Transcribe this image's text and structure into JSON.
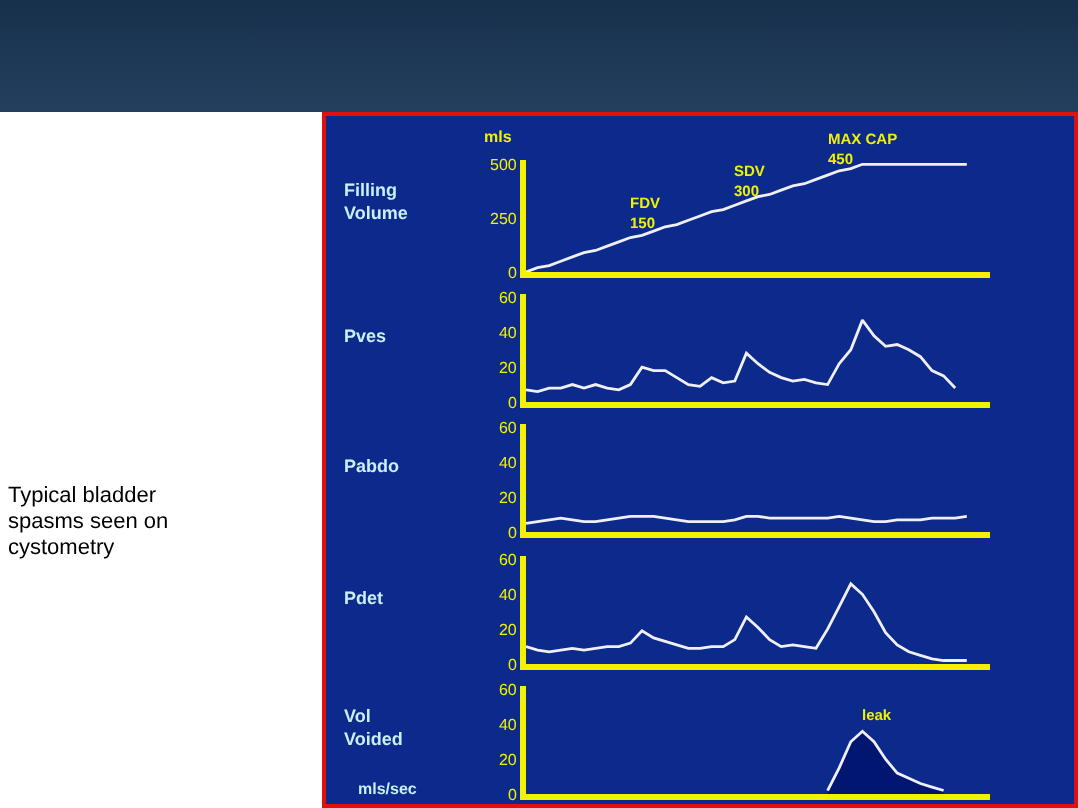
{
  "chart_data": [
    {
      "type": "other",
      "annotations": [
        "Typical bladder spasms seen on cystometry"
      ]
    },
    {
      "type": "line",
      "ylabel": "Filling Volume",
      "tick_labels": "y",
      "grid": false,
      "ylim": [
        0,
        520
      ],
      "yticks": [
        0,
        250,
        500
      ],
      "categories": [
        null,
        null,
        null,
        null,
        null,
        null,
        null,
        null,
        null,
        null,
        null,
        null,
        null,
        null,
        null,
        null,
        null,
        null,
        null,
        null,
        null,
        null,
        null,
        null,
        null,
        null,
        null,
        null,
        null,
        null,
        null,
        null,
        null,
        null,
        null,
        null,
        null,
        null,
        null,
        null,
        null
      ],
      "series": [
        {
          "color": "#f0f0f4",
          "values": [
            0,
            20,
            30,
            50,
            70,
            90,
            100,
            120,
            140,
            160,
            170,
            190,
            210,
            220,
            240,
            260,
            280,
            290,
            310,
            330,
            350,
            360,
            380,
            400,
            410,
            430,
            450,
            470,
            480,
            500,
            500,
            500,
            500,
            500,
            500,
            500,
            500,
            500,
            500,
            null,
            null
          ]
        }
      ],
      "annotations": [
        "mls",
        {
          "text": "FDV\n150",
          "y": 150
        },
        {
          "text": "SDV\n300",
          "y": 300
        },
        {
          "text": "MAX CAP\n450",
          "y": 450
        }
      ]
    },
    {
      "type": "line",
      "ylabel": "Pves",
      "tick_labels": "y",
      "grid": false,
      "ylim": [
        0,
        62
      ],
      "yticks": [
        0,
        20,
        40,
        60
      ],
      "categories": [
        null,
        null,
        null,
        null,
        null,
        null,
        null,
        null,
        null,
        null,
        null,
        null,
        null,
        null,
        null,
        null,
        null,
        null,
        null,
        null,
        null,
        null,
        null,
        null,
        null,
        null,
        null,
        null,
        null,
        null,
        null,
        null,
        null,
        null,
        null,
        null,
        null,
        null,
        null,
        null,
        null
      ],
      "series": [
        {
          "color": "#f0f0f4",
          "values": [
            7,
            6,
            8,
            8,
            10,
            8,
            10,
            8,
            7,
            10,
            20,
            18,
            18,
            14,
            10,
            9,
            14,
            11,
            12,
            28,
            22,
            17,
            14,
            12,
            13,
            11,
            10,
            22,
            30,
            47,
            38,
            32,
            33,
            30,
            26,
            18,
            15,
            8,
            null,
            null,
            null
          ]
        }
      ]
    },
    {
      "type": "line",
      "ylabel": "Pabdo",
      "tick_labels": "y",
      "grid": false,
      "ylim": [
        0,
        62
      ],
      "yticks": [
        0,
        20,
        40,
        60
      ],
      "categories": [
        null,
        null,
        null,
        null,
        null,
        null,
        null,
        null,
        null,
        null,
        null,
        null,
        null,
        null,
        null,
        null,
        null,
        null,
        null,
        null,
        null,
        null,
        null,
        null,
        null,
        null,
        null,
        null,
        null,
        null,
        null,
        null,
        null,
        null,
        null,
        null,
        null,
        null,
        null,
        null,
        null
      ],
      "series": [
        {
          "color": "#f0f0f4",
          "values": [
            5,
            6,
            7,
            8,
            7,
            6,
            6,
            7,
            8,
            9,
            9,
            9,
            8,
            7,
            6,
            6,
            6,
            6,
            7,
            9,
            9,
            8,
            8,
            8,
            8,
            8,
            8,
            9,
            8,
            7,
            6,
            6,
            7,
            7,
            7,
            8,
            8,
            8,
            9,
            null,
            null
          ]
        }
      ]
    },
    {
      "type": "line",
      "ylabel": "Pdet",
      "tick_labels": "y",
      "grid": false,
      "ylim": [
        0,
        62
      ],
      "yticks": [
        0,
        20,
        40,
        60
      ],
      "categories": [
        null,
        null,
        null,
        null,
        null,
        null,
        null,
        null,
        null,
        null,
        null,
        null,
        null,
        null,
        null,
        null,
        null,
        null,
        null,
        null,
        null,
        null,
        null,
        null,
        null,
        null,
        null,
        null,
        null,
        null,
        null,
        null,
        null,
        null,
        null,
        null,
        null,
        null,
        null,
        null,
        null
      ],
      "series": [
        {
          "color": "#f0f0f4",
          "values": [
            10,
            8,
            7,
            8,
            9,
            8,
            9,
            10,
            10,
            12,
            19,
            15,
            13,
            11,
            9,
            9,
            10,
            10,
            14,
            27,
            21,
            14,
            10,
            11,
            10,
            9,
            20,
            33,
            46,
            40,
            30,
            18,
            11,
            7,
            5,
            3,
            2,
            2,
            2,
            null,
            null
          ]
        }
      ]
    },
    {
      "type": "area",
      "ylabel": "Vol Voided",
      "tick_labels": "y",
      "grid": false,
      "ylim": [
        0,
        62
      ],
      "yticks": [
        0,
        20,
        40,
        60
      ],
      "categories": [
        null,
        null,
        null,
        null,
        null,
        null,
        null,
        null,
        null,
        null,
        null,
        null,
        null,
        null,
        null,
        null,
        null,
        null,
        null,
        null,
        null,
        null,
        null,
        null,
        null,
        null,
        null,
        null,
        null,
        null,
        null,
        null,
        null,
        null,
        null,
        null,
        null,
        null,
        null,
        null,
        null
      ],
      "series": [
        {
          "color": "#f0f0f4",
          "values": [
            null,
            null,
            null,
            null,
            null,
            null,
            null,
            null,
            null,
            null,
            null,
            null,
            null,
            null,
            null,
            null,
            null,
            null,
            null,
            null,
            null,
            null,
            null,
            null,
            null,
            null,
            2,
            15,
            30,
            36,
            30,
            20,
            12,
            9,
            6,
            4,
            2,
            null,
            null,
            null,
            null
          ]
        }
      ],
      "annotations": [
        "mls/sec",
        {
          "text": "leak",
          "y": 36
        }
      ]
    }
  ]
}
